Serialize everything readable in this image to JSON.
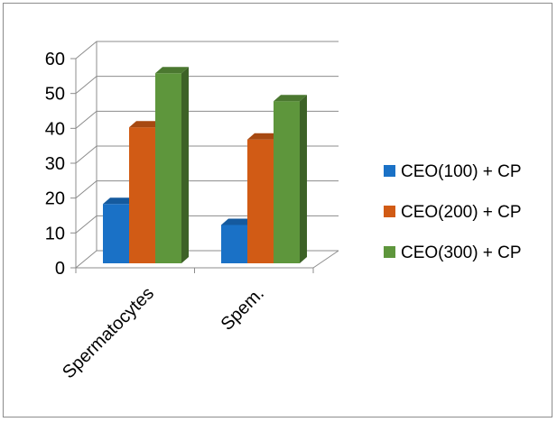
{
  "chart_data": {
    "type": "bar",
    "style": "3d-clustered-column",
    "categories": [
      "Spermatocytes",
      "Spem."
    ],
    "series": [
      {
        "name": "CEO(100) + CP",
        "values": [
          17,
          11
        ],
        "color": "#1a71c6"
      },
      {
        "name": "CEO(200) + CP",
        "values": [
          39,
          35.5
        ],
        "color": "#d15b15"
      },
      {
        "name": "CEO(300) + CP",
        "values": [
          54.5,
          46.5
        ],
        "color": "#5e963c"
      }
    ],
    "yticks": [
      "0",
      "10",
      "20",
      "30",
      "40",
      "50",
      "60"
    ],
    "ylim": [
      0,
      60
    ],
    "grid": true,
    "legend_position": "right",
    "title": "",
    "xlabel": "",
    "ylabel": ""
  }
}
